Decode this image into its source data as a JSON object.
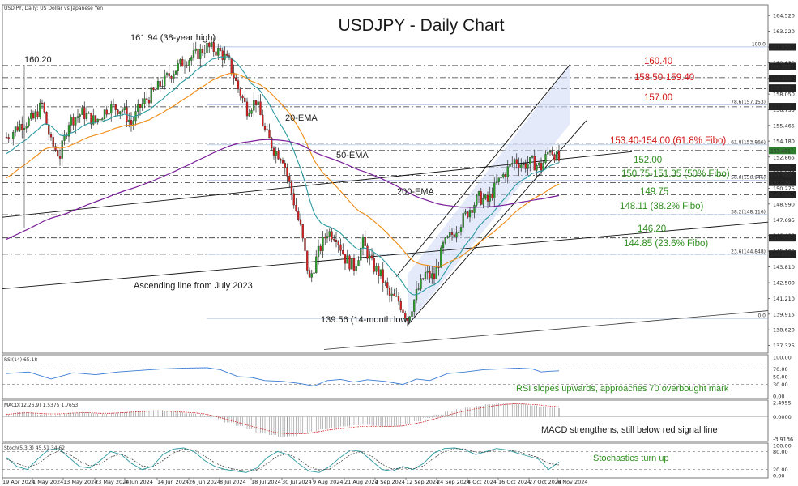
{
  "header": {
    "symbol_info": "USDJPY, Daily: US Dollar vs Japanese Yen",
    "title": "USDJPY - Daily Chart"
  },
  "chart_data": {
    "type": "candlestick",
    "title": "USDJPY - Daily Chart",
    "y_ticks": [
      "164.520",
      "163.220",
      "161.930",
      "160.630",
      "159.350",
      "158.050",
      "156.755",
      "155.465",
      "154.180",
      "152.865",
      "151.570",
      "150.275",
      "148.990",
      "147.695",
      "146.400",
      "145.105",
      "143.810",
      "142.500",
      "141.210",
      "139.915",
      "138.620",
      "137.325"
    ],
    "x_ticks": [
      "19 Apr 2024",
      "1 May 2024",
      "13 May 2024",
      "23 May 2024",
      "4 Jun 2024",
      "14 Jun 2024",
      "26 Jun 2024",
      "8 Jul 2024",
      "18 Jul 2024",
      "30 Jul 2024",
      "9 Aug 2024",
      "21 Aug 2024",
      "2 Sep 2024",
      "12 Sep 2024",
      "24 Sep 2024",
      "4 Oct 2024",
      "16 Oct 2024",
      "27 Oct 2024",
      "6 Nov 2024"
    ],
    "ylim": [
      136.7,
      165.4
    ],
    "price_path": [
      [
        0,
        154.5
      ],
      [
        6,
        155.5
      ],
      [
        12,
        156.0
      ],
      [
        16,
        157.2
      ],
      [
        20,
        154.0
      ],
      [
        24,
        153.0
      ],
      [
        28,
        155.8
      ],
      [
        34,
        156.5
      ],
      [
        40,
        155.8
      ],
      [
        46,
        157.0
      ],
      [
        52,
        156.8
      ],
      [
        56,
        155.6
      ],
      [
        60,
        157.0
      ],
      [
        68,
        158.6
      ],
      [
        74,
        159.8
      ],
      [
        80,
        160.8
      ],
      [
        86,
        161.4
      ],
      [
        90,
        161.94
      ],
      [
        96,
        161.5
      ],
      [
        100,
        160.6
      ],
      [
        104,
        158.5
      ],
      [
        108,
        156.8
      ],
      [
        112,
        157.5
      ],
      [
        116,
        155.0
      ],
      [
        120,
        153.5
      ],
      [
        124,
        152.8
      ],
      [
        128,
        149.9
      ],
      [
        132,
        147.0
      ],
      [
        136,
        142.7
      ],
      [
        140,
        145.0
      ],
      [
        144,
        146.7
      ],
      [
        148,
        146.4
      ],
      [
        152,
        144.5
      ],
      [
        156,
        143.8
      ],
      [
        160,
        145.8
      ],
      [
        164,
        144.0
      ],
      [
        168,
        143.1
      ],
      [
        172,
        141.4
      ],
      [
        176,
        141.0
      ],
      [
        180,
        139.56
      ],
      [
        184,
        141.6
      ],
      [
        188,
        143.2
      ],
      [
        192,
        142.9
      ],
      [
        196,
        145.5
      ],
      [
        200,
        146.5
      ],
      [
        204,
        147.5
      ],
      [
        208,
        148.6
      ],
      [
        212,
        149.5
      ],
      [
        216,
        149.2
      ],
      [
        220,
        150.6
      ],
      [
        224,
        151.6
      ],
      [
        228,
        152.6
      ],
      [
        232,
        152.2
      ],
      [
        236,
        152.4
      ],
      [
        240,
        152.0
      ],
      [
        244,
        153.6
      ],
      [
        248,
        152.6
      ]
    ],
    "levels": [
      {
        "label": "160.40",
        "value": 160.4,
        "color": "red"
      },
      {
        "label": "158.50-159.40",
        "value": 159.4,
        "value2": 158.5,
        "color": "red"
      },
      {
        "label": "157.00",
        "value": 157.0,
        "color": "red"
      },
      {
        "label": "153.40-154.00 (61.8% Fibo)",
        "value": 154.0,
        "value2": 153.4,
        "color": "red"
      },
      {
        "label": "152.00",
        "value": 152.0,
        "color": "green"
      },
      {
        "label": "150.75-151.35 (50% Fibo)",
        "value": 151.35,
        "value2": 150.75,
        "color": "green"
      },
      {
        "label": "149.75",
        "value": 149.75,
        "color": "green"
      },
      {
        "label": "148.11 (38.2% Fibo)",
        "value": 148.11,
        "color": "green"
      },
      {
        "label": "146.20",
        "value": 146.2,
        "color": "green"
      },
      {
        "label": "144.85 (23.6% Fibo)",
        "value": 144.85,
        "color": "green"
      }
    ],
    "price_tags": [
      "161.930",
      "160.333",
      "159.350",
      "158.550",
      "157.020",
      "153.401",
      "152.000",
      "151.350",
      "150.774",
      "149.750",
      "146.200",
      "144.865"
    ],
    "fib_tags": [
      "100.0",
      "78.6(157.153)",
      "61.8(153.866)",
      "50.0(150.946)",
      "38.2(148.116)",
      "23.6(144.848)",
      "0.0"
    ],
    "annotations": [
      {
        "text": "161.94 (38-year high)"
      },
      {
        "text": "160.20"
      },
      {
        "text": "20-EMA"
      },
      {
        "text": "50-EMA"
      },
      {
        "text": "200-EMA"
      },
      {
        "text": "Ascending line from July 2023"
      },
      {
        "text": "139.56 (14-month low)"
      }
    ],
    "rsi": {
      "label": "RSI(14) 65.18",
      "ticks": [
        "100.00",
        "70.00",
        "50.00",
        "30.00",
        "0.00"
      ],
      "comment": "RSI slopes upwards, approaches 70 overbought mark",
      "path": [
        [
          0,
          58
        ],
        [
          10,
          62
        ],
        [
          20,
          44
        ],
        [
          30,
          60
        ],
        [
          40,
          55
        ],
        [
          50,
          62
        ],
        [
          60,
          66
        ],
        [
          70,
          70
        ],
        [
          80,
          72
        ],
        [
          90,
          73
        ],
        [
          96,
          68
        ],
        [
          104,
          50
        ],
        [
          110,
          48
        ],
        [
          116,
          40
        ],
        [
          124,
          38
        ],
        [
          132,
          32
        ],
        [
          138,
          26
        ],
        [
          144,
          40
        ],
        [
          150,
          43
        ],
        [
          156,
          36
        ],
        [
          162,
          42
        ],
        [
          170,
          38
        ],
        [
          178,
          30
        ],
        [
          184,
          44
        ],
        [
          190,
          40
        ],
        [
          198,
          58
        ],
        [
          206,
          62
        ],
        [
          214,
          68
        ],
        [
          222,
          70
        ],
        [
          230,
          72
        ],
        [
          236,
          70
        ],
        [
          240,
          62
        ],
        [
          244,
          64
        ],
        [
          248,
          65
        ]
      ]
    },
    "macd": {
      "label": "MACD(12,26,9) 1.5375 1.7653",
      "ticks": [
        "2.4955",
        "0.0000",
        "-3.9136"
      ],
      "comment": "MACD strengthens, still below red signal line",
      "hist": [
        0.5,
        0.8,
        0.6,
        0.4,
        0.3,
        0.5,
        0.7,
        0.8,
        0.6,
        0.5,
        0.6,
        0.8,
        1.0,
        1.1,
        1.2,
        1.0,
        0.8,
        0.6,
        0.5,
        0.2,
        -0.4,
        -1.0,
        -1.6,
        -2.2,
        -2.8,
        -3.2,
        -3.5,
        -3.4,
        -3.0,
        -2.6,
        -2.2,
        -1.9,
        -1.7,
        -1.5,
        -1.4,
        -1.6,
        -1.8,
        -1.7,
        -1.3,
        -0.8,
        -0.2,
        0.4,
        0.9,
        1.3,
        1.6,
        1.9,
        2.2,
        2.4,
        2.4,
        2.3,
        2.0,
        1.8,
        1.6,
        1.5
      ],
      "signal": [
        0.4,
        0.6,
        0.7,
        0.6,
        0.5,
        0.5,
        0.6,
        0.7,
        0.7,
        0.6,
        0.6,
        0.7,
        0.8,
        0.9,
        1.0,
        1.0,
        0.9,
        0.8,
        0.7,
        0.5,
        0.1,
        -0.4,
        -0.9,
        -1.4,
        -1.9,
        -2.4,
        -2.8,
        -3.0,
        -3.0,
        -2.9,
        -2.6,
        -2.3,
        -2.1,
        -1.9,
        -1.7,
        -1.7,
        -1.7,
        -1.7,
        -1.6,
        -1.3,
        -0.9,
        -0.4,
        0.1,
        0.6,
        1.0,
        1.4,
        1.7,
        2.0,
        2.2,
        2.3,
        2.2,
        2.1,
        1.9,
        1.77
      ]
    },
    "stoch": {
      "label": "Stoch(5,3,3) 45.51 34.62",
      "ticks": [
        "100.00",
        "80.00",
        "20.00",
        "0.00"
      ],
      "comment": "Stochastics turn up",
      "k": [
        60,
        30,
        20,
        55,
        85,
        90,
        60,
        30,
        25,
        50,
        80,
        70,
        40,
        20,
        30,
        70,
        88,
        92,
        80,
        50,
        30,
        20,
        15,
        10,
        25,
        60,
        80,
        70,
        40,
        15,
        10,
        30,
        60,
        85,
        80,
        50,
        20,
        15,
        30,
        20,
        40,
        75,
        90,
        92,
        85,
        70,
        80,
        90,
        85,
        75,
        65,
        55,
        20,
        45
      ],
      "d": [
        55,
        40,
        28,
        38,
        65,
        82,
        72,
        48,
        32,
        38,
        62,
        72,
        55,
        32,
        28,
        50,
        75,
        88,
        85,
        65,
        42,
        28,
        20,
        15,
        18,
        40,
        65,
        72,
        55,
        30,
        18,
        22,
        45,
        70,
        80,
        65,
        38,
        22,
        25,
        22,
        32,
        58,
        80,
        90,
        88,
        78,
        78,
        85,
        85,
        80,
        70,
        60,
        40,
        35
      ]
    }
  }
}
